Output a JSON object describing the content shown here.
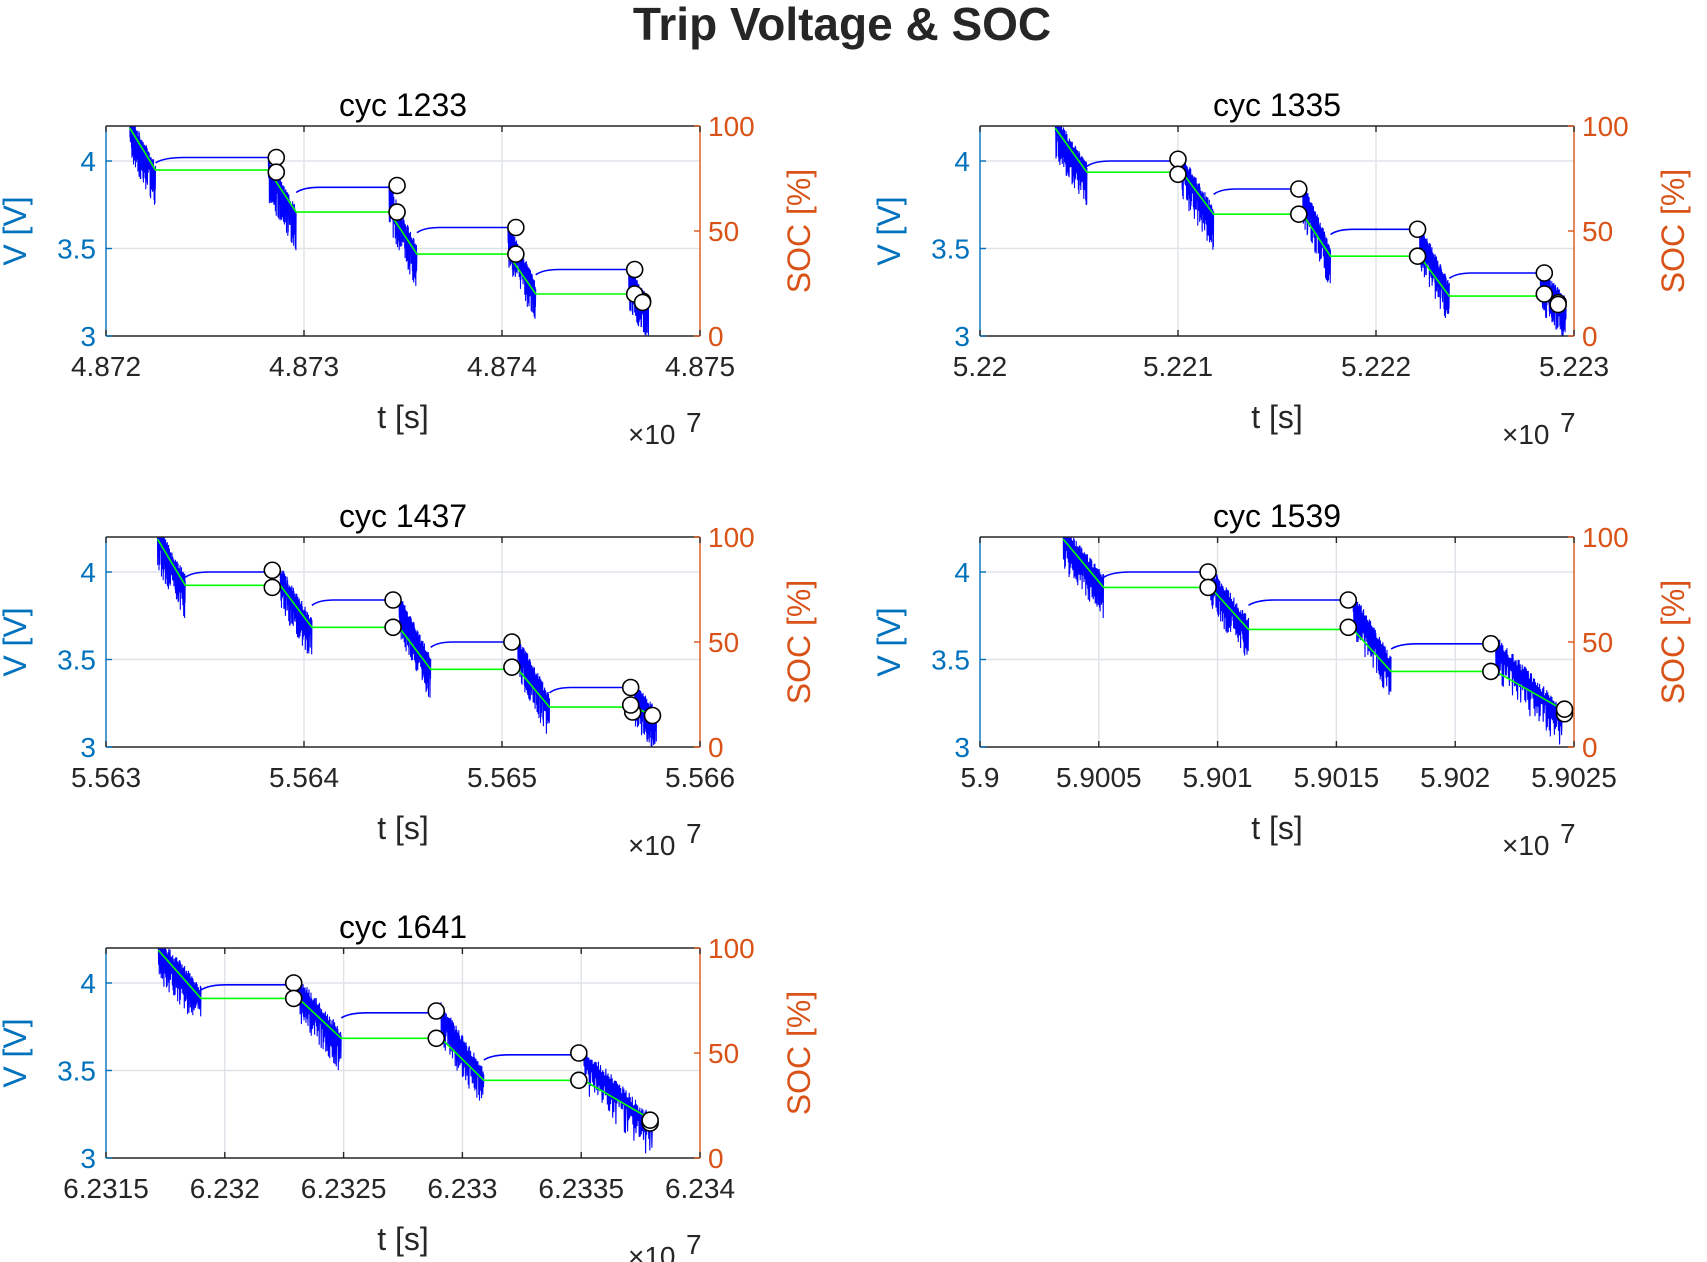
{
  "figure": {
    "title": "Trip Voltage & SOC",
    "colors": {
      "left_axis": "#0072bd",
      "right_axis": "#d95319",
      "voltage_line": "#0000ff",
      "soc_line": "#00ff00",
      "axis_black": "#262626",
      "marker_fill": "#ffffff",
      "marker_edge": "#000000"
    }
  },
  "chart_data": [
    {
      "type": "line",
      "title": "cyc 1233",
      "xlabel": "t [s]",
      "ylabel_left": "V [V]",
      "ylabel_right": "SOC [%]",
      "x_exponent_label": "×10",
      "x_exponent": "7",
      "xlim": [
        48720000,
        48750000
      ],
      "ylim_left": [
        3,
        4.2
      ],
      "ylim_right": [
        0,
        100
      ],
      "xticks": [
        48720000,
        48730000,
        48740000,
        48750000
      ],
      "xtick_labels": [
        "4.872",
        "4.873",
        "4.874",
        "4.875"
      ],
      "yticks_left": [
        3,
        3.5,
        4
      ],
      "ytick_labels_left": [
        "3",
        "3.5",
        "4"
      ],
      "yticks_right": [
        0,
        50,
        100
      ],
      "ytick_labels_right": [
        "0",
        "50",
        "100"
      ],
      "grid": true,
      "voltage_segments": [
        {
          "t0": 48721200,
          "t1": 48722500,
          "v_start": 4.2,
          "v_end": 3.92
        },
        {
          "t0": 48728200,
          "t1": 48729600,
          "v_start": 3.96,
          "v_end": 3.67
        },
        {
          "t0": 48734300,
          "t1": 48735700,
          "v_start": 3.8,
          "v_end": 3.45
        },
        {
          "t0": 48740300,
          "t1": 48741700,
          "v_start": 3.59,
          "v_end": 3.24
        },
        {
          "t0": 48746400,
          "t1": 48747400,
          "v_start": 3.33,
          "v_end": 3.15
        }
      ],
      "voltage_rests": [
        {
          "t0": 48722500,
          "t1": 48728200,
          "v": 4.02
        },
        {
          "t0": 48729600,
          "t1": 48734300,
          "v": 3.85
        },
        {
          "t0": 48735700,
          "t1": 48740300,
          "v": 3.62
        },
        {
          "t0": 48741700,
          "t1": 48746400,
          "v": 3.38
        }
      ],
      "soc": {
        "t": [
          48721200,
          48722500,
          48728200,
          48729600,
          48734300,
          48735700,
          48740300,
          48741700,
          48746400,
          48747400
        ],
        "soc": [
          99,
          79,
          79,
          59,
          59,
          39,
          39,
          20,
          20,
          15
        ]
      },
      "trip_markers_voltage": [
        {
          "t": 48728600,
          "v": 4.02
        },
        {
          "t": 48734700,
          "v": 3.86
        },
        {
          "t": 48740700,
          "v": 3.62
        },
        {
          "t": 48746700,
          "v": 3.38
        },
        {
          "t": 48747100,
          "v": 3.2
        }
      ],
      "trip_markers_soc": [
        {
          "t": 48728600,
          "soc": 78
        },
        {
          "t": 48734700,
          "soc": 59
        },
        {
          "t": 48740700,
          "soc": 39
        },
        {
          "t": 48746700,
          "soc": 20
        },
        {
          "t": 48747100,
          "soc": 16
        }
      ]
    },
    {
      "type": "line",
      "title": "cyc 1335",
      "xlabel": "t [s]",
      "ylabel_left": "V [V]",
      "ylabel_right": "SOC [%]",
      "x_exponent_label": "×10",
      "x_exponent": "7",
      "xlim": [
        52200000,
        52230000
      ],
      "ylim_left": [
        3,
        4.2
      ],
      "ylim_right": [
        0,
        100
      ],
      "xticks": [
        52200000,
        52210000,
        52220000,
        52230000
      ],
      "xtick_labels": [
        "5.22",
        "5.221",
        "5.222",
        "5.223"
      ],
      "yticks_left": [
        3,
        3.5,
        4
      ],
      "ytick_labels_left": [
        "3",
        "3.5",
        "4"
      ],
      "yticks_right": [
        0,
        50,
        100
      ],
      "ytick_labels_right": [
        "0",
        "50",
        "100"
      ],
      "grid": true,
      "voltage_segments": [
        {
          "t0": 52203800,
          "t1": 52205400,
          "v_start": 4.2,
          "v_end": 3.92
        },
        {
          "t0": 52210200,
          "t1": 52211800,
          "v_start": 3.97,
          "v_end": 3.67
        },
        {
          "t0": 52216300,
          "t1": 52217700,
          "v_start": 3.82,
          "v_end": 3.45
        },
        {
          "t0": 52222200,
          "t1": 52223700,
          "v_start": 3.58,
          "v_end": 3.24
        },
        {
          "t0": 52228300,
          "t1": 52229600,
          "v_start": 3.33,
          "v_end": 3.15
        }
      ],
      "voltage_rests": [
        {
          "t0": 52205400,
          "t1": 52210200,
          "v": 4.0
        },
        {
          "t0": 52211800,
          "t1": 52216300,
          "v": 3.84
        },
        {
          "t0": 52217700,
          "t1": 52222200,
          "v": 3.61
        },
        {
          "t0": 52223700,
          "t1": 52228300,
          "v": 3.36
        }
      ],
      "soc": {
        "t": [
          52203800,
          52205400,
          52210200,
          52211800,
          52216300,
          52217700,
          52222200,
          52223700,
          52228300,
          52229600
        ],
        "soc": [
          99,
          78,
          78,
          58,
          58,
          38,
          38,
          19,
          19,
          15
        ]
      },
      "trip_markers_voltage": [
        {
          "t": 52210000,
          "v": 4.01
        },
        {
          "t": 52216100,
          "v": 3.84
        },
        {
          "t": 52222100,
          "v": 3.61
        },
        {
          "t": 52228500,
          "v": 3.36
        },
        {
          "t": 52229200,
          "v": 3.19
        }
      ],
      "trip_markers_soc": [
        {
          "t": 52210000,
          "soc": 77
        },
        {
          "t": 52216100,
          "soc": 58
        },
        {
          "t": 52222100,
          "soc": 38
        },
        {
          "t": 52228500,
          "soc": 20
        },
        {
          "t": 52229200,
          "soc": 15
        }
      ]
    },
    {
      "type": "line",
      "title": "cyc 1437",
      "xlabel": "t [s]",
      "ylabel_left": "V [V]",
      "ylabel_right": "SOC [%]",
      "x_exponent_label": "×10",
      "x_exponent": "7",
      "xlim": [
        55630000,
        55660000
      ],
      "ylim_left": [
        3,
        4.2
      ],
      "ylim_right": [
        0,
        100
      ],
      "xticks": [
        55630000,
        55640000,
        55650000,
        55660000
      ],
      "xtick_labels": [
        "5.563",
        "5.564",
        "5.565",
        "5.566"
      ],
      "yticks_left": [
        3,
        3.5,
        4
      ],
      "ytick_labels_left": [
        "3",
        "3.5",
        "4"
      ],
      "yticks_right": [
        0,
        50,
        100
      ],
      "ytick_labels_right": [
        "0",
        "50",
        "100"
      ],
      "grid": true,
      "voltage_segments": [
        {
          "t0": 55632600,
          "t1": 55634000,
          "v_start": 4.2,
          "v_end": 3.92
        },
        {
          "t0": 55638800,
          "t1": 55640400,
          "v_start": 3.97,
          "v_end": 3.67
        },
        {
          "t0": 55644800,
          "t1": 55646400,
          "v_start": 3.82,
          "v_end": 3.45
        },
        {
          "t0": 55650800,
          "t1": 55652400,
          "v_start": 3.57,
          "v_end": 3.23
        },
        {
          "t0": 55656700,
          "t1": 55657800,
          "v_start": 3.3,
          "v_end": 3.15
        }
      ],
      "voltage_rests": [
        {
          "t0": 55634000,
          "t1": 55638800,
          "v": 4.0
        },
        {
          "t0": 55640400,
          "t1": 55644800,
          "v": 3.84
        },
        {
          "t0": 55646400,
          "t1": 55650800,
          "v": 3.6
        },
        {
          "t0": 55652400,
          "t1": 55656700,
          "v": 3.34
        }
      ],
      "soc": {
        "t": [
          55632600,
          55634000,
          55638800,
          55640400,
          55644800,
          55646400,
          55650800,
          55652400,
          55656700,
          55657800
        ],
        "soc": [
          99,
          77,
          77,
          57,
          57,
          37,
          37,
          19,
          19,
          14
        ]
      },
      "trip_markers_voltage": [
        {
          "t": 55638400,
          "v": 4.01
        },
        {
          "t": 55644500,
          "v": 3.84
        },
        {
          "t": 55650500,
          "v": 3.6
        },
        {
          "t": 55656500,
          "v": 3.34
        },
        {
          "t": 55656600,
          "v": 3.2
        }
      ],
      "trip_markers_soc": [
        {
          "t": 55638400,
          "soc": 76
        },
        {
          "t": 55644500,
          "soc": 57
        },
        {
          "t": 55650500,
          "soc": 38
        },
        {
          "t": 55656500,
          "soc": 20
        },
        {
          "t": 55657600,
          "soc": 15
        }
      ]
    },
    {
      "type": "line",
      "title": "cyc 1539",
      "xlabel": "t [s]",
      "ylabel_left": "V [V]",
      "ylabel_right": "SOC [%]",
      "x_exponent_label": "×10",
      "x_exponent": "7",
      "xlim": [
        59000000,
        59025000
      ],
      "ylim_left": [
        3,
        4.2
      ],
      "ylim_right": [
        0,
        100
      ],
      "xticks": [
        59000000,
        59005000,
        59010000,
        59015000,
        59020000,
        59025000
      ],
      "xtick_labels": [
        "5.9",
        "5.9005",
        "5.901",
        "5.9015",
        "5.902",
        "5.9025"
      ],
      "yticks_left": [
        3,
        3.5,
        4
      ],
      "ytick_labels_left": [
        "3",
        "3.5",
        "4"
      ],
      "yticks_right": [
        0,
        50,
        100
      ],
      "ytick_labels_right": [
        "0",
        "50",
        "100"
      ],
      "grid": true,
      "voltage_segments": [
        {
          "t0": 59003500,
          "t1": 59005200,
          "v_start": 4.2,
          "v_end": 3.92
        },
        {
          "t0": 59009700,
          "t1": 59011300,
          "v_start": 3.97,
          "v_end": 3.67
        },
        {
          "t0": 59015700,
          "t1": 59017300,
          "v_start": 3.82,
          "v_end": 3.45
        },
        {
          "t0": 59021700,
          "t1": 59024500,
          "v_start": 3.57,
          "v_end": 3.17
        }
      ],
      "voltage_rests": [
        {
          "t0": 59005200,
          "t1": 59009700,
          "v": 4.0
        },
        {
          "t0": 59011300,
          "t1": 59015700,
          "v": 3.84
        },
        {
          "t0": 59017300,
          "t1": 59021700,
          "v": 3.59
        }
      ],
      "soc": {
        "t": [
          59003500,
          59005200,
          59009700,
          59011300,
          59015700,
          59017300,
          59021700,
          59024500
        ],
        "soc": [
          99,
          76,
          76,
          56,
          56,
          36,
          36,
          18
        ]
      },
      "trip_markers_voltage": [
        {
          "t": 59009600,
          "v": 4.0
        },
        {
          "t": 59015500,
          "v": 3.84
        },
        {
          "t": 59021500,
          "v": 3.59
        },
        {
          "t": 59024600,
          "v": 3.19
        }
      ],
      "trip_markers_soc": [
        {
          "t": 59009600,
          "soc": 76
        },
        {
          "t": 59015500,
          "soc": 57
        },
        {
          "t": 59021500,
          "soc": 36
        },
        {
          "t": 59024600,
          "soc": 18
        }
      ]
    },
    {
      "type": "line",
      "title": "cyc 1641",
      "xlabel": "t [s]",
      "ylabel_left": "V [V]",
      "ylabel_right": "SOC [%]",
      "x_exponent_label": "×10",
      "x_exponent": "7",
      "xlim": [
        62315000,
        62340000
      ],
      "ylim_left": [
        3,
        4.2
      ],
      "ylim_right": [
        0,
        100
      ],
      "xticks": [
        62315000,
        62320000,
        62325000,
        62330000,
        62335000,
        62340000
      ],
      "xtick_labels": [
        "6.2315",
        "6.232",
        "6.2325",
        "6.233",
        "6.2335",
        "6.234"
      ],
      "yticks_left": [
        3,
        3.5,
        4
      ],
      "ytick_labels_left": [
        "3",
        "3.5",
        "4"
      ],
      "yticks_right": [
        0,
        50,
        100
      ],
      "ytick_labels_right": [
        "0",
        "50",
        "100"
      ],
      "grid": true,
      "voltage_segments": [
        {
          "t0": 62317200,
          "t1": 62319000,
          "v_start": 4.2,
          "v_end": 3.92
        },
        {
          "t0": 62323100,
          "t1": 62324900,
          "v_start": 3.97,
          "v_end": 3.67
        },
        {
          "t0": 62329100,
          "t1": 62330900,
          "v_start": 3.82,
          "v_end": 3.45
        },
        {
          "t0": 62335100,
          "t1": 62338000,
          "v_start": 3.57,
          "v_end": 3.17
        }
      ],
      "voltage_rests": [
        {
          "t0": 62319000,
          "t1": 62323100,
          "v": 3.99
        },
        {
          "t0": 62324900,
          "t1": 62329100,
          "v": 3.83
        },
        {
          "t0": 62330900,
          "t1": 62335100,
          "v": 3.59
        }
      ],
      "soc": {
        "t": [
          62317200,
          62319000,
          62323100,
          62324900,
          62329100,
          62330900,
          62335100,
          62338000
        ],
        "soc": [
          99,
          76,
          76,
          57,
          57,
          37,
          37,
          18
        ]
      },
      "trip_markers_voltage": [
        {
          "t": 62322900,
          "v": 4.0
        },
        {
          "t": 62328900,
          "v": 3.84
        },
        {
          "t": 62334900,
          "v": 3.6
        },
        {
          "t": 62337900,
          "v": 3.2
        }
      ],
      "trip_markers_soc": [
        {
          "t": 62322900,
          "soc": 76
        },
        {
          "t": 62328900,
          "soc": 57
        },
        {
          "t": 62334900,
          "soc": 37
        },
        {
          "t": 62337900,
          "soc": 18
        }
      ]
    }
  ]
}
